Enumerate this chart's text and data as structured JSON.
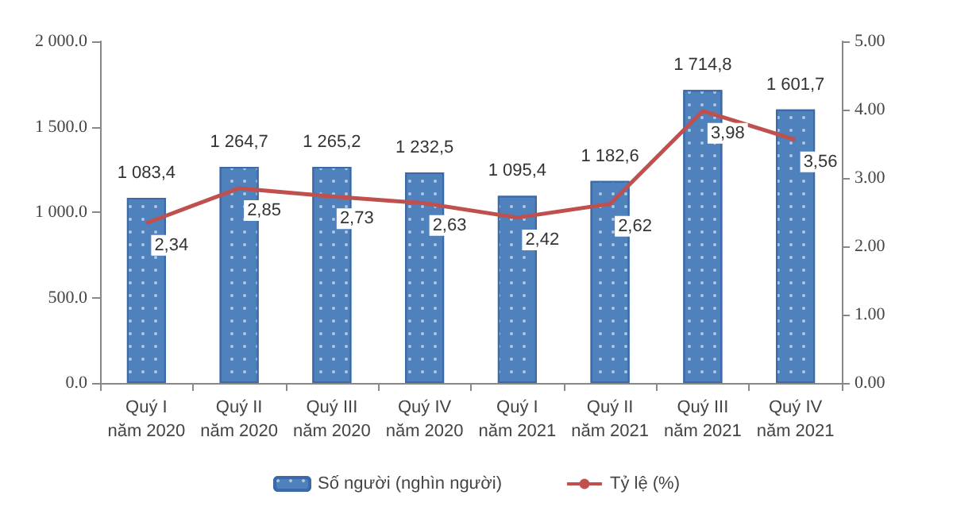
{
  "chart_data": {
    "type": "bar",
    "categories": [
      "Quý I\nnăm 2020",
      "Quý II\nnăm 2020",
      "Quý III\nnăm 2020",
      "Quý IV\nnăm 2020",
      "Quý I\nnăm 2021",
      "Quý II\nnăm 2021",
      "Quý III\nnăm 2021",
      "Quý IV\nnăm 2021"
    ],
    "series": [
      {
        "name": "Số người (nghìn người)",
        "color": "#4f81bd",
        "values": [
          1083.4,
          1264.7,
          1265.2,
          1232.5,
          1095.4,
          1182.6,
          1714.8,
          1601.7
        ],
        "value_labels": [
          "1 083,4",
          "1 264,7",
          "1 265,2",
          "1 232,5",
          "1 095,4",
          "1 182,6",
          "1 714,8",
          "1 601,7"
        ]
      },
      {
        "name": "Tỷ lệ (%)",
        "type": "line",
        "axis": "y2",
        "color": "#c0504d",
        "values": [
          2.34,
          2.85,
          2.73,
          2.63,
          2.42,
          2.62,
          3.98,
          3.56
        ],
        "value_labels": [
          "2,34",
          "2,85",
          "2,73",
          "2,63",
          "2,42",
          "2,62",
          "3,98",
          "3,56"
        ]
      }
    ],
    "ylim": [
      0,
      2000
    ],
    "yticks": [
      {
        "value": 0,
        "label": "0.0"
      },
      {
        "value": 500,
        "label": "500.0"
      },
      {
        "value": 1000,
        "label": "1 000.0"
      },
      {
        "value": 1500,
        "label": "1 500.0"
      },
      {
        "value": 2000,
        "label": "2 000.0"
      }
    ],
    "y2lim": [
      0,
      5
    ],
    "y2ticks": [
      {
        "value": 0,
        "label": "0.00"
      },
      {
        "value": 1,
        "label": "1.00"
      },
      {
        "value": 2,
        "label": "2.00"
      },
      {
        "value": 3,
        "label": "3.00"
      },
      {
        "value": 4,
        "label": "4.00"
      },
      {
        "value": 5,
        "label": "5.00"
      }
    ],
    "grid": false,
    "legend": "bottom",
    "marker": "none",
    "line_style": "solid"
  }
}
